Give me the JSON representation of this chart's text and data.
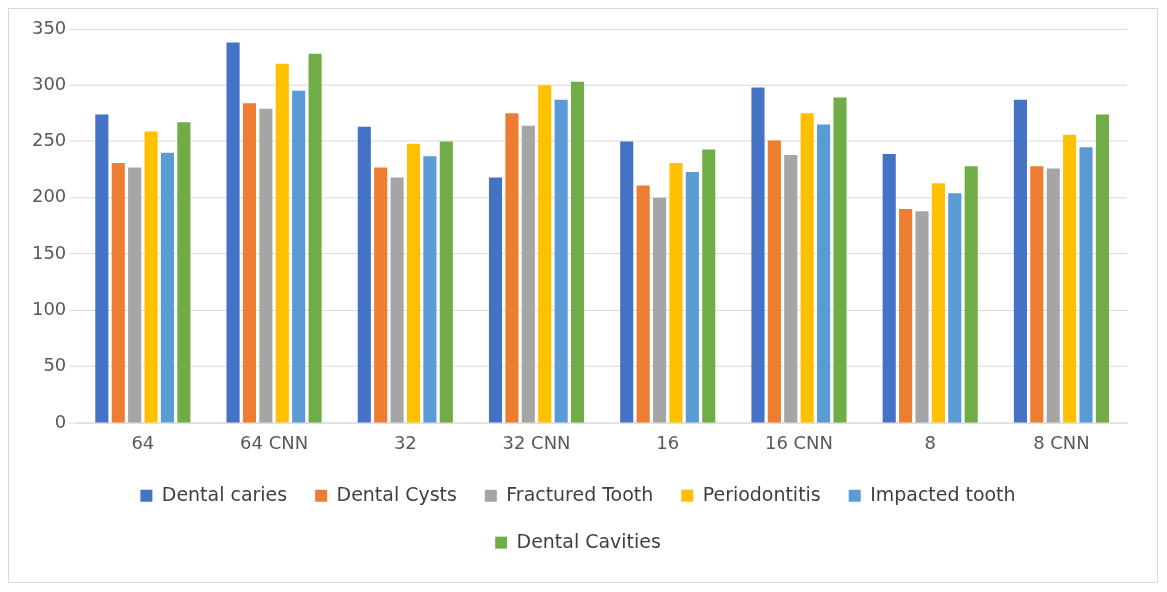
{
  "chart_data": {
    "type": "bar",
    "categories": [
      "64",
      "64 CNN",
      "32",
      "32 CNN",
      "16",
      "16 CNN",
      "8",
      "8 CNN"
    ],
    "series": [
      {
        "name": "Dental caries",
        "color": "#4472c4",
        "values": [
          274,
          338,
          263,
          218,
          250,
          298,
          239,
          287
        ]
      },
      {
        "name": "Dental Cysts",
        "color": "#ed7d31",
        "values": [
          231,
          284,
          227,
          275,
          211,
          251,
          190,
          228
        ]
      },
      {
        "name": "Fractured Tooth",
        "color": "#a5a5a5",
        "values": [
          227,
          279,
          218,
          264,
          200,
          238,
          188,
          226
        ]
      },
      {
        "name": "Periodontitis",
        "color": "#ffc000",
        "values": [
          259,
          319,
          248,
          300,
          231,
          275,
          213,
          256
        ]
      },
      {
        "name": "Impacted tooth",
        "color": "#5b9bd5",
        "values": [
          240,
          295,
          237,
          287,
          223,
          265,
          204,
          245
        ]
      },
      {
        "name": "Dental Cavities",
        "color": "#70ad47",
        "values": [
          267,
          328,
          250,
          303,
          243,
          289,
          228,
          274
        ]
      }
    ],
    "ylim": [
      0,
      350
    ],
    "yticks": [
      0,
      50,
      100,
      150,
      200,
      250,
      300,
      350
    ],
    "grid": "y",
    "legend": "bottom"
  }
}
